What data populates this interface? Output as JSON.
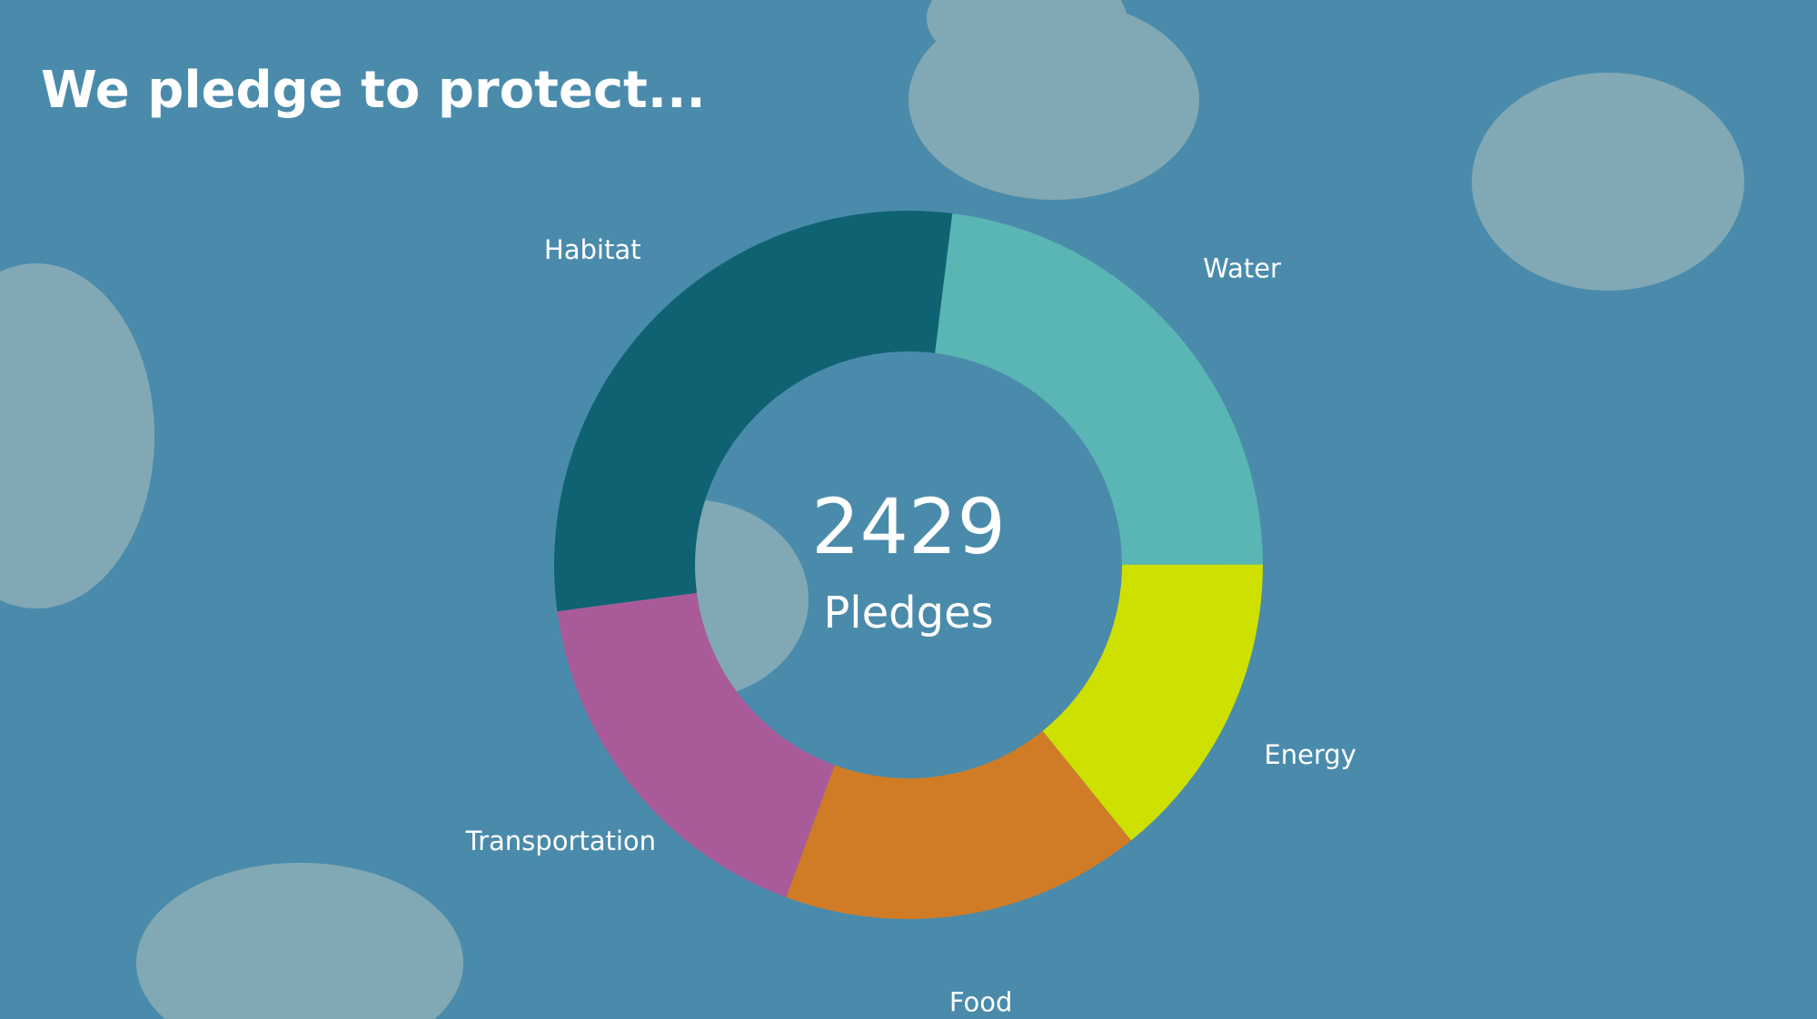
{
  "chart_data": {
    "type": "donut",
    "title": "We pledge to protect...",
    "center_value": 2429,
    "center_label": "Pledges",
    "categories": [
      "Water",
      "Energy",
      "Food",
      "Transportation",
      "Habitat"
    ],
    "values": [
      559,
      345,
      399,
      420,
      706
    ],
    "colors": [
      "#5ab6b4",
      "#cde000",
      "#d07c27",
      "#a85b98",
      "#0f6272"
    ]
  }
}
